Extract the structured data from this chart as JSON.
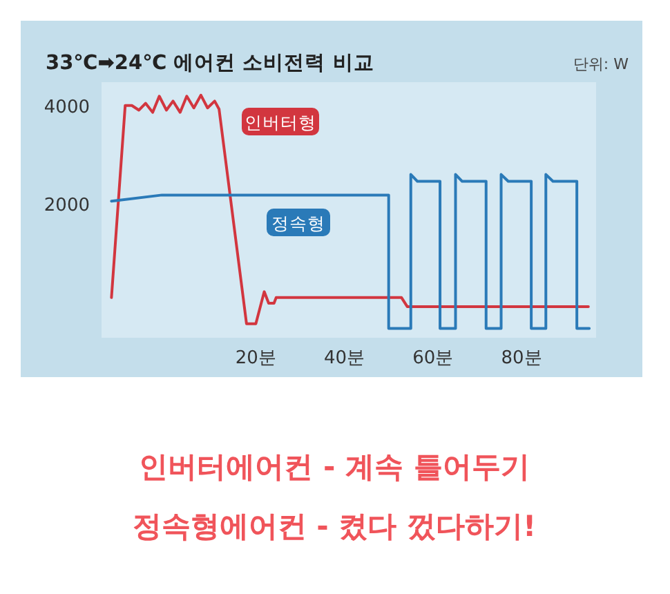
{
  "chart_data": {
    "type": "line",
    "title": "33℃➡24℃ 에어컨 소비전력 비교",
    "ylabel": "단위: W",
    "xlim": [
      -15,
      97
    ],
    "ylim": [
      -750,
      4500
    ],
    "xticks": [
      {
        "value": 20,
        "label": "20분"
      },
      {
        "value": 40,
        "label": "40분"
      },
      {
        "value": 60,
        "label": "60분"
      },
      {
        "value": 80,
        "label": "80분"
      }
    ],
    "yticks": [
      2000,
      4000
    ],
    "legend": false,
    "grid": false,
    "marker": "none",
    "line_style": "solid",
    "series": [
      {
        "name": "인버터형",
        "color": "#d2363f",
        "x": [
          -12.6,
          -9.5,
          -8.0,
          -6.4,
          -4.9,
          -3.3,
          -1.8,
          -0.2,
          1.3,
          2.9,
          4.4,
          6.0,
          7.6,
          9.1,
          10.7,
          11.7,
          17.9,
          20.0,
          21.9,
          22.9,
          24.1,
          24.6,
          52.9,
          54.2,
          95.1
        ],
        "values": [
          85,
          4010,
          4010,
          3915,
          4055,
          3870,
          4200,
          3915,
          4100,
          3870,
          4200,
          3960,
          4220,
          3960,
          4100,
          3935,
          -450,
          -450,
          205,
          -30,
          -30,
          85,
          85,
          -100,
          -100
        ]
      },
      {
        "name": "정속형",
        "color": "#2a7ab8",
        "x": [
          -12.6,
          -1.2,
          50.0,
          50.0,
          55.0,
          55.0,
          56.5,
          61.6,
          61.6,
          65.1,
          65.1,
          66.6,
          72.0,
          72.0,
          75.4,
          75.4,
          77.0,
          82.2,
          82.2,
          85.5,
          85.5,
          87.1,
          92.5,
          92.5,
          95.3
        ],
        "values": [
          2055,
          2180,
          2180,
          -545,
          -545,
          2600,
          2460,
          2460,
          -545,
          -545,
          2600,
          2460,
          2460,
          -545,
          -545,
          2600,
          2460,
          2460,
          -545,
          -545,
          2600,
          2460,
          2460,
          -545,
          -545
        ]
      }
    ],
    "annotations": [
      "인버터에어컨 - 계속 틀어두기",
      "정속형에어컨 - 켰다 껐다하기!"
    ]
  }
}
